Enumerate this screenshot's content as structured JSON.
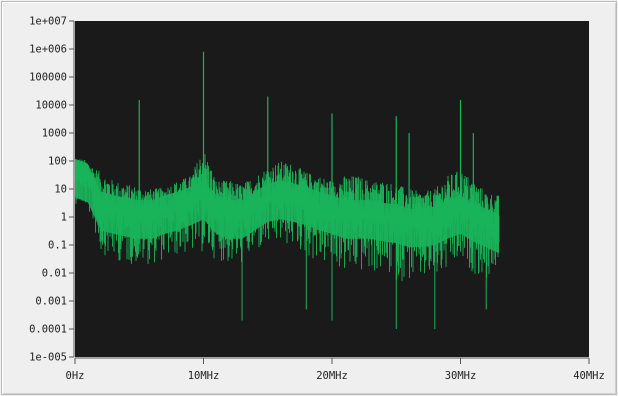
{
  "chart_data": {
    "type": "line",
    "title": "",
    "xlabel": "",
    "ylabel": "",
    "x_scale": "linear",
    "y_scale": "log",
    "xlim_hz": [
      0,
      40000000
    ],
    "ylim": [
      1e-05,
      10000000
    ],
    "x_ticks": [
      {
        "value": 0,
        "label": "0Hz"
      },
      {
        "value": 10000000,
        "label": "10MHz"
      },
      {
        "value": 20000000,
        "label": "20MHz"
      },
      {
        "value": 30000000,
        "label": "30MHz"
      },
      {
        "value": 40000000,
        "label": "40MHz"
      }
    ],
    "y_ticks": [
      {
        "value": 10000000,
        "label": "1e+007"
      },
      {
        "value": 1000000,
        "label": "1e+006"
      },
      {
        "value": 100000,
        "label": "100000"
      },
      {
        "value": 10000,
        "label": "10000"
      },
      {
        "value": 1000,
        "label": "1000"
      },
      {
        "value": 100,
        "label": "100"
      },
      {
        "value": 10,
        "label": "10"
      },
      {
        "value": 1,
        "label": "1"
      },
      {
        "value": 0.1,
        "label": "0.1"
      },
      {
        "value": 0.01,
        "label": "0.01"
      },
      {
        "value": 0.001,
        "label": "0.001"
      },
      {
        "value": 0.0001,
        "label": "0.0001"
      },
      {
        "value": 1e-05,
        "label": "1e-005"
      }
    ],
    "grid": false,
    "legend": "none",
    "colors": {
      "plot_background": "#1a1a1a",
      "trace": "#1ab35a",
      "frame": "#efefef"
    },
    "series": [
      {
        "color": "#1ab35a",
        "x_hz": [
          0,
          1000000,
          2000000,
          3000000,
          4000000,
          5000000,
          6000000,
          7000000,
          8000000,
          9000000,
          10000000,
          11000000,
          12000000,
          13000000,
          14000000,
          15000000,
          16000000,
          17000000,
          18000000,
          19000000,
          20000000,
          21000000,
          22000000,
          23000000,
          24000000,
          25000000,
          26000000,
          27000000,
          28000000,
          29000000,
          30000000,
          31000000,
          32000000,
          33000000
        ],
        "upper_envelope": [
          150,
          100,
          40,
          20,
          15,
          12,
          10,
          12,
          20,
          30,
          300,
          20,
          20,
          15,
          30,
          60,
          100,
          80,
          40,
          30,
          20,
          30,
          30,
          20,
          20,
          15,
          10,
          8,
          10,
          30,
          50,
          20,
          8,
          6
        ],
        "typical_level": [
          30,
          20,
          2,
          1.5,
          1.2,
          1,
          1,
          1.5,
          2,
          3,
          5,
          1.5,
          1,
          1,
          2,
          4,
          5,
          4,
          3,
          2,
          1.5,
          1,
          1,
          1,
          0.8,
          0.7,
          0.5,
          0.5,
          0.6,
          1,
          1.5,
          0.8,
          0.5,
          0.3
        ],
        "lower_envelope": [
          3,
          2,
          0.05,
          0.03,
          0.02,
          0.02,
          0.02,
          0.03,
          0.04,
          0.05,
          0.05,
          0.03,
          0.02,
          0.02,
          0.05,
          0.08,
          0.1,
          0.08,
          0.04,
          0.02,
          0.02,
          0.01,
          0.01,
          0.01,
          0.01,
          0.005,
          0.005,
          0.005,
          0.005,
          0.01,
          0.02,
          0.01,
          0.005,
          0.02
        ],
        "peaks": [
          {
            "x_hz": 5000000,
            "y": 15000
          },
          {
            "x_hz": 10000000,
            "y": 800000
          },
          {
            "x_hz": 15000000,
            "y": 20000
          },
          {
            "x_hz": 20000000,
            "y": 5000
          },
          {
            "x_hz": 25000000,
            "y": 4000
          },
          {
            "x_hz": 26000000,
            "y": 1000
          },
          {
            "x_hz": 30000000,
            "y": 15000
          },
          {
            "x_hz": 31000000,
            "y": 1000
          }
        ],
        "dips": [
          {
            "x_hz": 13000000,
            "y": 0.0002
          },
          {
            "x_hz": 18000000,
            "y": 0.0005
          },
          {
            "x_hz": 20000000,
            "y": 0.0002
          },
          {
            "x_hz": 25000000,
            "y": 0.0001
          },
          {
            "x_hz": 28000000,
            "y": 0.0001
          },
          {
            "x_hz": 32000000,
            "y": 0.0005
          }
        ],
        "end_x_hz": 33000000
      }
    ]
  }
}
